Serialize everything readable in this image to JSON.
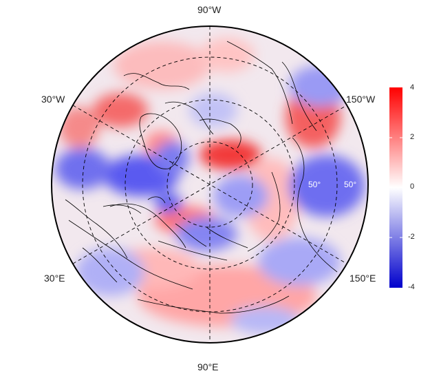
{
  "map": {
    "projection": "north-polar-stereographic",
    "longitude_labels": {
      "top": "90°W",
      "bottom": "90°E",
      "upper_left": "30°W",
      "lower_left": "30°E",
      "upper_right": "150°W",
      "lower_right": "150°E"
    },
    "latitude_labels": [
      "50°",
      "50°"
    ],
    "colorbar": {
      "ticks": [
        "4",
        "2",
        "0",
        "-2",
        "-4"
      ],
      "min": -4,
      "max": 4,
      "colors": {
        "high": "#ff0000",
        "mid": "#ffffff",
        "low": "#0000cc"
      }
    }
  }
}
